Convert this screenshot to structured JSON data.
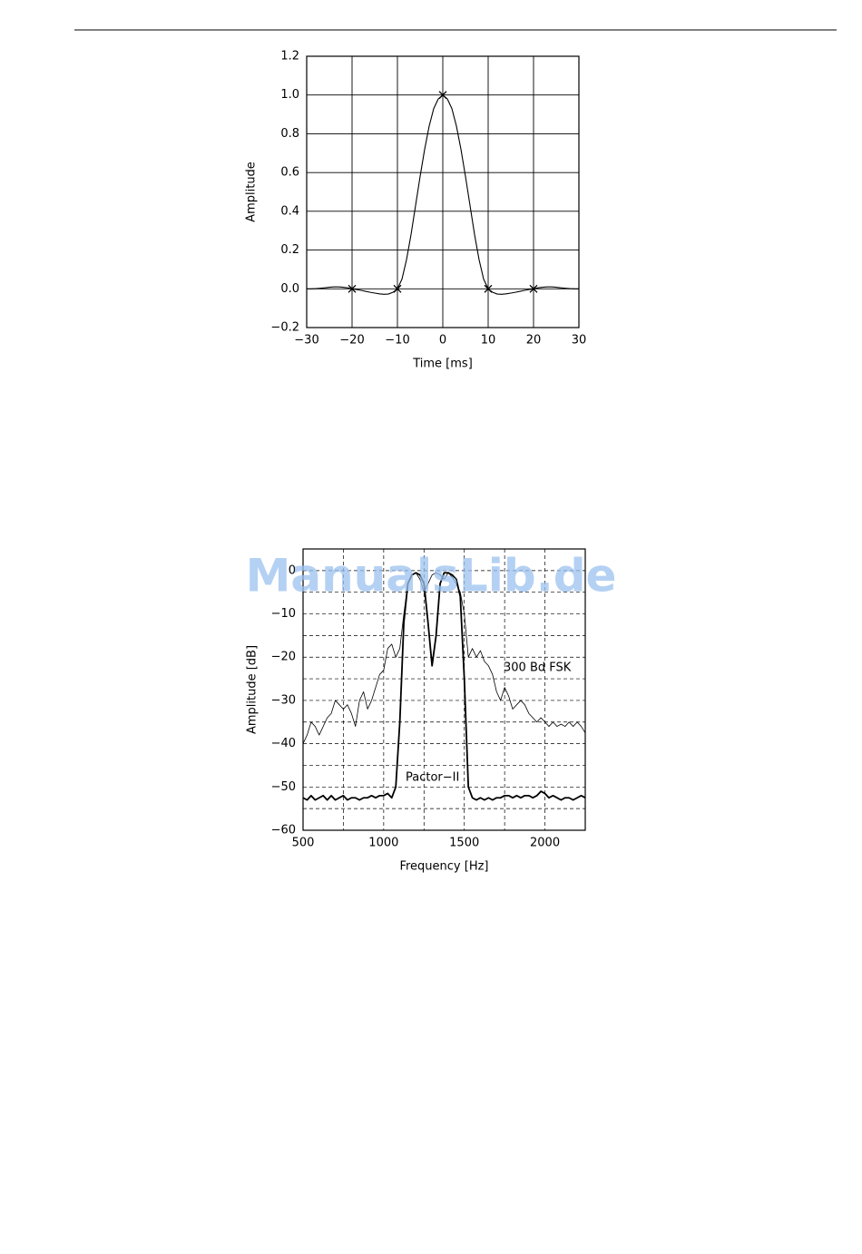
{
  "watermark": "ManualsLib.de",
  "chart_data": [
    {
      "type": "line",
      "xlabel": "Time [ms]",
      "ylabel": "Amplitude",
      "grid": "solid",
      "xlim": [
        -30,
        30
      ],
      "ylim": [
        -0.2,
        1.2
      ],
      "xticks": [
        {
          "value": -30,
          "label": "−30"
        },
        {
          "value": -20,
          "label": "−20"
        },
        {
          "value": -10,
          "label": "−10"
        },
        0,
        10,
        20,
        30
      ],
      "yticks": [
        {
          "value": -0.2,
          "label": "−0.2"
        },
        {
          "value": 0,
          "label": "0.0"
        },
        0.2,
        0.4,
        0.6,
        0.8,
        {
          "value": 1,
          "label": "1.0"
        },
        1.2
      ],
      "series": [
        {
          "color": "#000000",
          "style": "line",
          "x": [
            -30,
            -29,
            -28,
            -27,
            -26,
            -25,
            -24,
            -23,
            -22,
            -21,
            -20,
            -19,
            -18,
            -17,
            -16,
            -15,
            -14,
            -13,
            -12,
            -11,
            -10,
            -9,
            -8,
            -7,
            -6,
            -5,
            -4,
            -3,
            -2,
            -1,
            0,
            1,
            2,
            3,
            4,
            5,
            6,
            7,
            8,
            9,
            10,
            11,
            12,
            13,
            14,
            15,
            16,
            17,
            18,
            19,
            20,
            21,
            22,
            23,
            24,
            25,
            26,
            27,
            28,
            29,
            30
          ],
          "values": [
            0,
            0,
            0.001,
            0.003,
            0.005,
            0.008,
            0.01,
            0.01,
            0.008,
            0.005,
            0,
            -0.004,
            -0.008,
            -0.013,
            -0.018,
            -0.022,
            -0.026,
            -0.028,
            -0.027,
            -0.018,
            0,
            0.05,
            0.15,
            0.28,
            0.43,
            0.58,
            0.72,
            0.84,
            0.93,
            0.98,
            1,
            0.98,
            0.93,
            0.84,
            0.72,
            0.58,
            0.43,
            0.28,
            0.15,
            0.05,
            0,
            -0.018,
            -0.027,
            -0.028,
            -0.026,
            -0.022,
            -0.018,
            -0.013,
            -0.008,
            -0.004,
            0,
            0.005,
            0.008,
            0.01,
            0.01,
            0.008,
            0.005,
            0.003,
            0.001,
            0,
            0
          ]
        },
        {
          "color": "#000000",
          "style": "markers",
          "x": [
            -20,
            -10,
            0,
            10,
            20
          ],
          "values": [
            0,
            0,
            1,
            0,
            0
          ]
        }
      ]
    },
    {
      "type": "line",
      "xlabel": "Frequency [Hz]",
      "ylabel": "Amplitude [dB]",
      "grid": "dashed",
      "xlim": [
        500,
        2250
      ],
      "ylim": [
        -60,
        5
      ],
      "xticks": [
        500,
        1000,
        1500,
        2000
      ],
      "xminor": [
        750,
        1250,
        1750
      ],
      "yticks": [
        {
          "value": -60,
          "label": "−60"
        },
        {
          "value": -50,
          "label": "−50"
        },
        {
          "value": -40,
          "label": "−40"
        },
        {
          "value": -30,
          "label": "−30"
        },
        {
          "value": -20,
          "label": "−20"
        },
        {
          "value": -10,
          "label": "−10"
        },
        0
      ],
      "yminor": [
        -55,
        -45,
        -35,
        -25,
        -15,
        -5
      ],
      "x": [
        500,
        525,
        550,
        575,
        600,
        625,
        650,
        675,
        700,
        725,
        750,
        775,
        800,
        825,
        850,
        875,
        900,
        925,
        950,
        975,
        1000,
        1025,
        1050,
        1075,
        1100,
        1125,
        1150,
        1175,
        1200,
        1225,
        1250,
        1275,
        1300,
        1325,
        1350,
        1375,
        1400,
        1425,
        1450,
        1475,
        1500,
        1525,
        1550,
        1575,
        1600,
        1625,
        1650,
        1675,
        1700,
        1725,
        1750,
        1775,
        1800,
        1825,
        1850,
        1875,
        1900,
        1925,
        1950,
        1975,
        2000,
        2025,
        2050,
        2075,
        2100,
        2125,
        2150,
        2175,
        2200,
        2225,
        2250
      ],
      "series": [
        {
          "name": "Pactor−II",
          "color": "#000000",
          "style": "line",
          "width": 1.8,
          "values": [
            -52.5,
            -53,
            -52,
            -53,
            -52.5,
            -52,
            -53,
            -52,
            -53,
            -52.5,
            -52,
            -53,
            -52.5,
            -52.5,
            -53,
            -52.5,
            -52.5,
            -52,
            -52.5,
            -52,
            -52,
            -51.5,
            -52.5,
            -50,
            -35,
            -12,
            -3,
            -1,
            -0.5,
            -1,
            -3,
            -12,
            -22,
            -15,
            -3,
            -0.5,
            -0.5,
            -1,
            -2,
            -6,
            -25,
            -50,
            -52.5,
            -53,
            -52.5,
            -53,
            -52.5,
            -53,
            -52.5,
            -52.5,
            -52,
            -52,
            -52.5,
            -52,
            -52.5,
            -52,
            -52,
            -52.5,
            -52,
            -51,
            -51.5,
            -52.5,
            -52,
            -52.5,
            -53,
            -52.5,
            -52.5,
            -53,
            -52.5,
            -52,
            -52.5
          ]
        },
        {
          "name": "300 Bd FSK",
          "color": "#000000",
          "style": "line",
          "width": 0.8,
          "values": [
            -40,
            -38,
            -35,
            -36,
            -38,
            -36,
            -34,
            -33,
            -30,
            -31,
            -32,
            -31,
            -33,
            -36,
            -30,
            -28,
            -32,
            -30,
            -27,
            -24,
            -23,
            -18,
            -17,
            -20,
            -18,
            -10,
            -3,
            -1,
            -0.5,
            -2,
            -5,
            -3,
            -1,
            -0.5,
            -1,
            -2,
            -0.5,
            -1.5,
            -3,
            -5,
            -10,
            -20,
            -18,
            -20,
            -18.5,
            -21,
            -22,
            -24,
            -28,
            -30,
            -27,
            -29,
            -32,
            -31,
            -30,
            -31,
            -33,
            -34,
            -35,
            -34,
            -35,
            -36,
            -35,
            -36,
            -35.5,
            -36,
            -35,
            -36,
            -35,
            -36,
            -37.5
          ]
        }
      ]
    }
  ]
}
